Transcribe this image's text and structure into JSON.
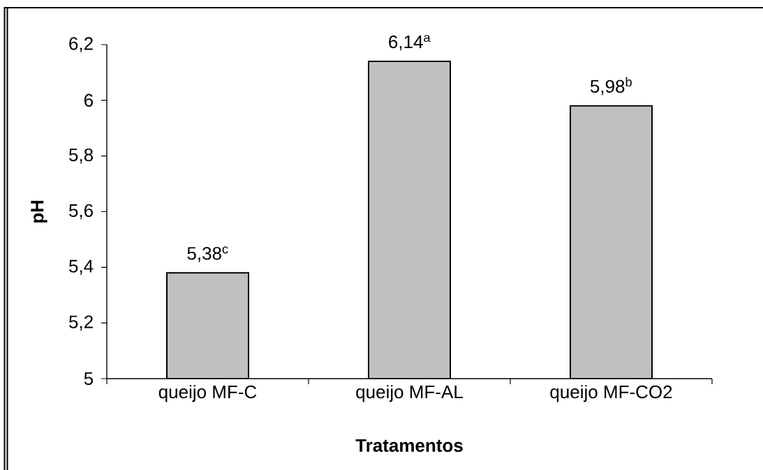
{
  "chart_data": {
    "type": "bar",
    "xlabel": "Tratamentos",
    "ylabel": "pH",
    "categories": [
      "queijo MF-C",
      "queijo MF-AL",
      "queijo MF-CO2"
    ],
    "values": [
      5.38,
      6.14,
      5.98
    ],
    "value_labels": [
      "5,38$^{c}$",
      "6,14$^{a}$",
      "5,98$^{b}$"
    ],
    "color": "#c0c0c0",
    "ylim": [
      5,
      6.2
    ],
    "yticks": [
      5,
      {
        "value": 5.2,
        "label": "5,2"
      },
      {
        "value": 5.4,
        "label": "5,4"
      },
      {
        "value": 5.6,
        "label": "5,6"
      },
      {
        "value": 5.8,
        "label": "5,8"
      },
      6,
      {
        "value": 6.2,
        "label": "6,2"
      }
    ]
  }
}
